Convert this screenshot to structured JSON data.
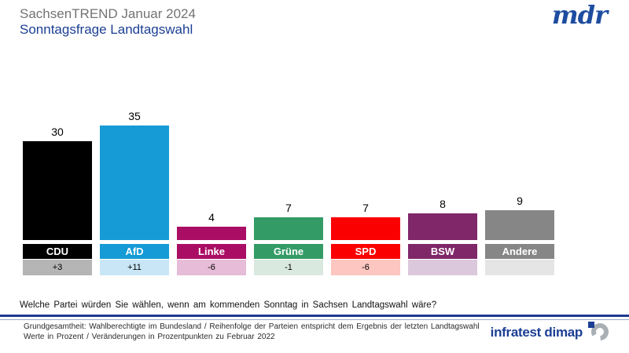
{
  "header": {
    "supertitle": "SachsenTREND Januar 2024",
    "title": "Sonntagsfrage Landtagswahl",
    "brand_logo_text": "mdr"
  },
  "chart_data": {
    "type": "bar",
    "title": "Sonntagsfrage Landtagswahl",
    "subtitle": "SachsenTREND Januar 2024",
    "categories": [
      "CDU",
      "AfD",
      "Linke",
      "Grüne",
      "SPD",
      "BSW",
      "Andere"
    ],
    "values": [
      30,
      35,
      4,
      7,
      7,
      8,
      9
    ],
    "changes": [
      "+3",
      "+11",
      "-6",
      "-1",
      "-6",
      "",
      ""
    ],
    "bar_colors": [
      "#000000",
      "#169bd7",
      "#aa0d64",
      "#339b66",
      "#fa0000",
      "#7f2768",
      "#868686"
    ],
    "change_band_colors": [
      "#b5b5b5",
      "#c9e6f7",
      "#e6bcd8",
      "#d9e9df",
      "#fdc6c0",
      "#dcc8dc",
      "#e5e5e5"
    ],
    "unit": "Prozent",
    "ylim": [
      0,
      40
    ],
    "grid": false,
    "legend": "none",
    "value_labels": "above bars",
    "notes": "Veränderungen in Prozentpunkten zu Februar 2022; BSW und Andere ohne Veränderungswert"
  },
  "question": {
    "text": "Welche Partei würden Sie wählen, wenn am kommenden Sonntag in Sachsen Landtagswahl wäre?"
  },
  "footer": {
    "line1": "Grundgesamtheit: Wahlberechtigte im Bundesland / Reihenfolge der Parteien entspricht dem Ergebnis der letzten Landtagswahl",
    "line2": "Werte in Prozent / Veränderungen  in Prozentpunkten zu Februar 2022",
    "brand": "infratest dimap"
  },
  "colors": {
    "title_gray": "#737373",
    "accent_blue": "#1c3f94",
    "separator_blue": "#1d3a8f"
  }
}
